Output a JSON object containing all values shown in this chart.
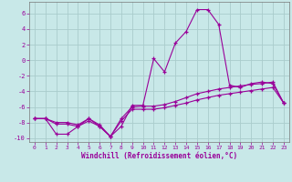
{
  "x": [
    0,
    1,
    2,
    3,
    4,
    5,
    6,
    7,
    8,
    9,
    10,
    11,
    12,
    13,
    14,
    15,
    16,
    17,
    18,
    19,
    20,
    21,
    22,
    23
  ],
  "line1": [
    -7.5,
    -7.5,
    -9.5,
    -9.5,
    -8.5,
    -7.5,
    -8.5,
    -9.8,
    -8.5,
    -5.8,
    -5.8,
    0.2,
    -1.5,
    2.2,
    3.7,
    6.5,
    6.5,
    4.6,
    -3.2,
    -3.5,
    -3.0,
    -2.8,
    -3.0,
    -5.5
  ],
  "line2": [
    -7.5,
    -7.5,
    -8.0,
    -8.0,
    -8.3,
    -7.5,
    -8.3,
    -9.8,
    -7.5,
    -6.0,
    -5.9,
    -5.9,
    -5.7,
    -5.3,
    -4.8,
    -4.3,
    -4.0,
    -3.7,
    -3.5,
    -3.3,
    -3.1,
    -3.0,
    -2.8,
    -5.5
  ],
  "line3": [
    -7.5,
    -7.5,
    -8.2,
    -8.2,
    -8.5,
    -7.8,
    -8.5,
    -9.8,
    -7.8,
    -6.3,
    -6.3,
    -6.3,
    -6.1,
    -5.8,
    -5.5,
    -5.1,
    -4.8,
    -4.5,
    -4.3,
    -4.1,
    -3.9,
    -3.7,
    -3.5,
    -5.5
  ],
  "bg_color": "#c8e8e8",
  "grid_color": "#aacccc",
  "line_color": "#990099",
  "xlim": [
    -0.5,
    23.5
  ],
  "ylim": [
    -10.5,
    7.5
  ],
  "yticks": [
    -10,
    -8,
    -6,
    -4,
    -2,
    0,
    2,
    4,
    6
  ],
  "xticks": [
    0,
    1,
    2,
    3,
    4,
    5,
    6,
    7,
    8,
    9,
    10,
    11,
    12,
    13,
    14,
    15,
    16,
    17,
    18,
    19,
    20,
    21,
    22,
    23
  ],
  "xlabel": "Windchill (Refroidissement éolien,°C)",
  "label_color": "#990099",
  "tick_color": "#990099",
  "tick_fontsize": 4.5,
  "xlabel_fontsize": 5.5
}
